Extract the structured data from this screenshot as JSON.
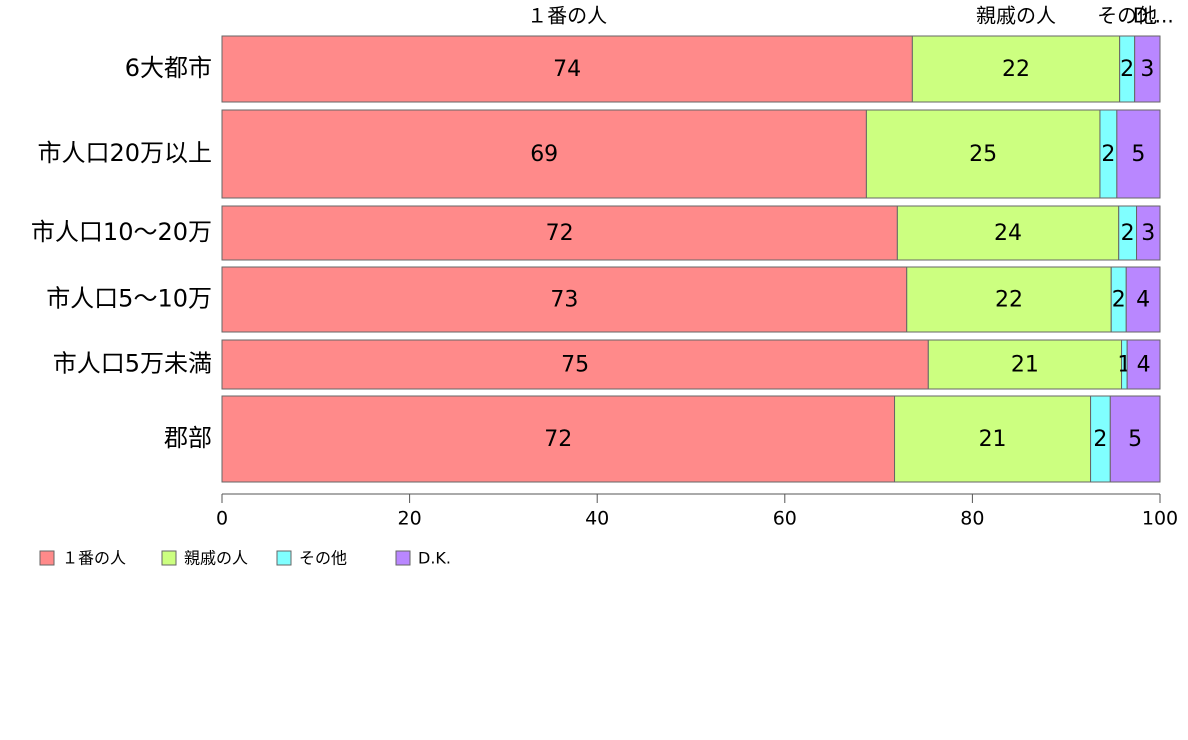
{
  "chart_data": {
    "type": "bar",
    "orientation": "horizontal",
    "stacked": true,
    "categories": [
      "6大都市",
      "市人口20万以上",
      "市人口10〜20万",
      "市人口5〜10万",
      "市人口5万未満",
      "郡部"
    ],
    "series": [
      {
        "name": "１番の人",
        "color": "#ff8a8a",
        "values": [
          73.6,
          68.7,
          72,
          73,
          75.3,
          71.7
        ],
        "labels": [
          "74",
          "69",
          "72",
          "73",
          "75",
          "72"
        ]
      },
      {
        "name": "親戚の人",
        "color": "#ccff80",
        "values": [
          22.1,
          24.9,
          23.6,
          21.8,
          20.6,
          20.9
        ],
        "labels": [
          "22",
          "25",
          "24",
          "22",
          "21",
          "21"
        ]
      },
      {
        "name": "その他",
        "color": "#80ffff",
        "values": [
          1.6,
          1.8,
          1.9,
          1.6,
          0.6,
          2.1
        ],
        "labels": [
          "2",
          "2",
          "2",
          "2",
          "1",
          "2"
        ]
      },
      {
        "name": "D.K.",
        "color": "#b987ff",
        "values": [
          2.7,
          4.6,
          2.5,
          3.6,
          3.5,
          5.3
        ],
        "labels": [
          "3",
          "5",
          "3",
          "4",
          "4",
          "5"
        ]
      }
    ],
    "top_labels": [
      "１番の人",
      "親戚の人",
      "その他",
      "D...."
    ],
    "xlim": [
      0,
      100
    ],
    "xticks": [
      "0",
      "20",
      "40",
      "60",
      "80",
      "100"
    ],
    "grid": false,
    "legend_position": "bottom-left"
  }
}
